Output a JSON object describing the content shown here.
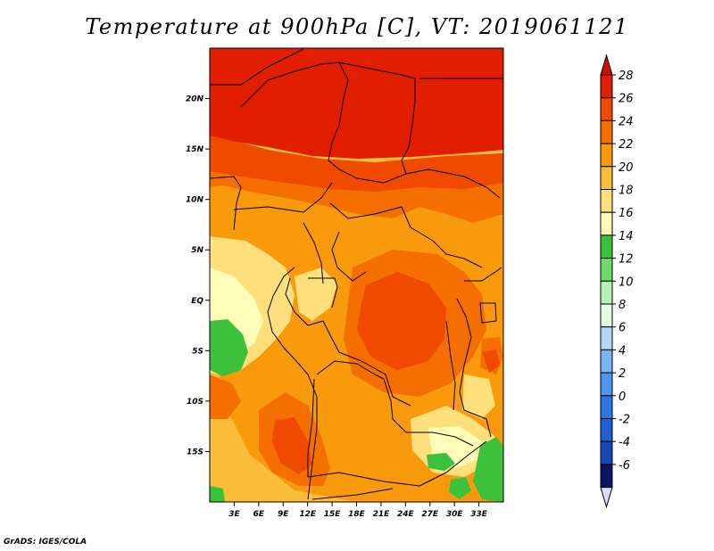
{
  "title": "Temperature at 900hPa [C], VT: 2019061121",
  "credit": "GrADS: IGES/COLA",
  "map": {
    "lon_range": [
      0,
      36
    ],
    "lat_range": [
      -20,
      25
    ],
    "lat_ticks": [
      {
        "lat": 20,
        "label": "20N"
      },
      {
        "lat": 15,
        "label": "15N"
      },
      {
        "lat": 10,
        "label": "10N"
      },
      {
        "lat": 5,
        "label": "5N"
      },
      {
        "lat": 0,
        "label": "EQ"
      },
      {
        "lat": -5,
        "label": "5S"
      },
      {
        "lat": -10,
        "label": "10S"
      },
      {
        "lat": -15,
        "label": "15S"
      }
    ],
    "lon_ticks": [
      {
        "lon": 3,
        "label": "3E"
      },
      {
        "lon": 6,
        "label": "6E"
      },
      {
        "lon": 9,
        "label": "9E"
      },
      {
        "lon": 12,
        "label": "12E"
      },
      {
        "lon": 15,
        "label": "15E"
      },
      {
        "lon": 18,
        "label": "18E"
      },
      {
        "lon": 21,
        "label": "21E"
      },
      {
        "lon": 24,
        "label": "24E"
      },
      {
        "lon": 27,
        "label": "27E"
      },
      {
        "lon": 30,
        "label": "30E"
      },
      {
        "lon": 33,
        "label": "33E"
      }
    ]
  },
  "colorbar": {
    "levels": [
      {
        "label": "28",
        "color": "#e11f00"
      },
      {
        "label": "26",
        "color": "#ef4a00"
      },
      {
        "label": "24",
        "color": "#f46e00"
      },
      {
        "label": "22",
        "color": "#f89a0c"
      },
      {
        "label": "20",
        "color": "#fcbe3a"
      },
      {
        "label": "18",
        "color": "#fde07c"
      },
      {
        "label": "16",
        "color": "#fffdb8"
      },
      {
        "label": "14",
        "color": "#3bc13b"
      },
      {
        "label": "12",
        "color": "#6fdb6f"
      },
      {
        "label": "10",
        "color": "#b5f3b5"
      },
      {
        "label": "8",
        "color": "#e3fde3"
      },
      {
        "label": "6",
        "color": "#b4d6fb"
      },
      {
        "label": "4",
        "color": "#7ab4f3"
      },
      {
        "label": "2",
        "color": "#4e95ee"
      },
      {
        "label": "0",
        "color": "#2e76e0"
      },
      {
        "label": "-2",
        "color": "#1f5fd1"
      },
      {
        "label": "-4",
        "color": "#1747b5"
      },
      {
        "label": "-6",
        "color": "#0d2b93"
      }
    ],
    "top_color": "#cc1000",
    "bottom_color": "#0a1460",
    "below_color": "#dcdcff"
  }
}
